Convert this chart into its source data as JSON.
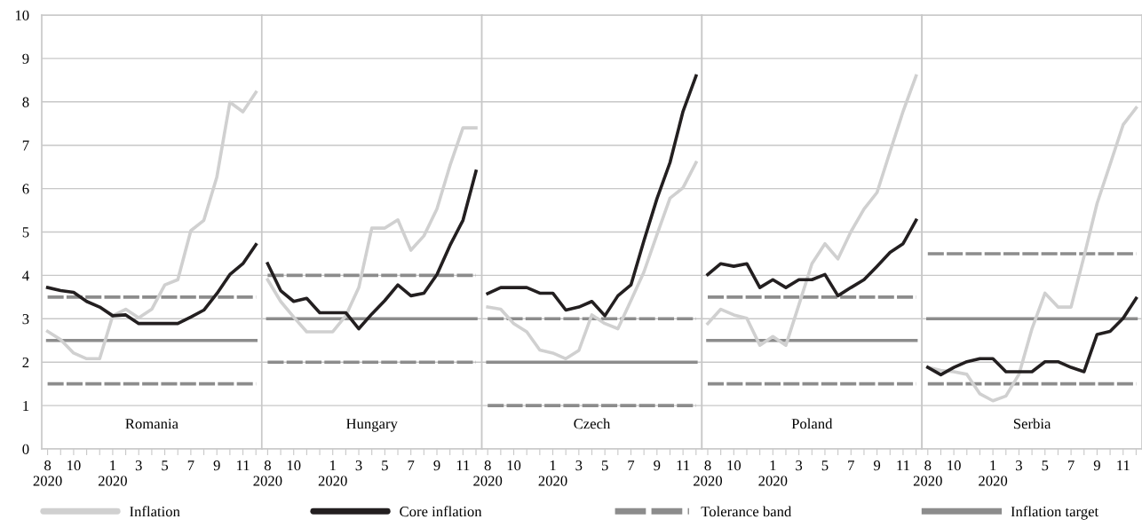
{
  "chart_data": [
    {
      "type": "line",
      "categories": [
        "8\n2020",
        null,
        "10",
        null,
        null,
        "1\n2020",
        null,
        "3",
        null,
        "5",
        null,
        "7",
        null,
        "9",
        null,
        "11",
        null
      ],
      "ylim": [
        0,
        10
      ],
      "yticks": [
        0,
        1,
        2,
        3,
        4,
        5,
        6,
        7,
        8,
        9,
        10
      ],
      "grid": "y",
      "legend": "bottom",
      "series": [
        {
          "name": "Inflation",
          "color": "#d0d0d0",
          "values": [
            2.71,
            2.52,
            2.21,
            2.08,
            2.08,
            3.07,
            3.22,
            3.02,
            3.22,
            3.78,
            3.9,
            5.03,
            5.27,
            6.27,
            7.99,
            7.77,
            8.22
          ]
        },
        {
          "name": "Core inflation",
          "color": "#231f20",
          "values": [
            3.72,
            3.65,
            3.61,
            3.4,
            3.27,
            3.07,
            3.09,
            2.89,
            2.89,
            2.89,
            2.89,
            3.04,
            3.2,
            3.58,
            4.02,
            4.27,
            4.71
          ]
        },
        {
          "name": "Tolerance band",
          "color": "#8c8c8c",
          "line_style": "dashed",
          "values": [
            3.5,
            3.5,
            3.5,
            3.5,
            3.5,
            3.5,
            3.5,
            3.5,
            3.5,
            3.5,
            3.5,
            3.5,
            3.5,
            3.5,
            3.5,
            3.5,
            3.5
          ]
        },
        {
          "color": "#8c8c8c",
          "line_style": "dashed",
          "values": [
            1.5,
            1.5,
            1.5,
            1.5,
            1.5,
            1.5,
            1.5,
            1.5,
            1.5,
            1.5,
            1.5,
            1.5,
            1.5,
            1.5,
            1.5,
            1.5,
            1.5
          ]
        }
      ],
      "ref_lines": [
        {
          "axis": "y",
          "value": 2.5,
          "label": "Inflation target",
          "color": "#8c8c8c",
          "line_style": "solid"
        }
      ],
      "annotations": [
        "Romania"
      ]
    },
    {
      "type": "line",
      "categories": [
        "8\n2020",
        null,
        "10",
        null,
        null,
        "1\n2020",
        null,
        "3",
        null,
        "5",
        null,
        "7",
        null,
        "9",
        null,
        "11",
        null
      ],
      "ylim": [
        0,
        10
      ],
      "yticks": [
        0,
        1,
        2,
        3,
        4,
        5,
        6,
        7,
        8,
        9,
        10
      ],
      "grid": "y",
      "tick_labels": "x",
      "series": [
        {
          "color": "#d0d0d0",
          "values": [
            3.9,
            3.4,
            3.04,
            2.7,
            2.7,
            2.7,
            3.07,
            3.72,
            5.09,
            5.09,
            5.28,
            4.58,
            4.91,
            5.53,
            6.53,
            7.4,
            7.4
          ]
        },
        {
          "color": "#231f20",
          "values": [
            4.27,
            3.65,
            3.4,
            3.47,
            3.14,
            3.14,
            3.14,
            2.77,
            3.11,
            3.42,
            3.78,
            3.53,
            3.59,
            4.02,
            4.69,
            5.27,
            6.4
          ]
        },
        {
          "color": "#8c8c8c",
          "line_style": "dashed",
          "values": [
            4,
            4,
            4,
            4,
            4,
            4,
            4,
            4,
            4,
            4,
            4,
            4,
            4,
            4,
            4,
            4,
            4
          ]
        },
        {
          "color": "#8c8c8c",
          "line_style": "dashed",
          "values": [
            2,
            2,
            2,
            2,
            2,
            2,
            2,
            2,
            2,
            2,
            2,
            2,
            2,
            2,
            2,
            2,
            2
          ]
        }
      ],
      "ref_lines": [
        {
          "axis": "y",
          "value": 3,
          "color": "#8c8c8c",
          "line_style": "solid"
        }
      ],
      "annotations": [
        "Hungary"
      ]
    },
    {
      "type": "line",
      "categories": [
        "8\n2020",
        null,
        "10",
        null,
        null,
        "1\n2020",
        null,
        "3",
        null,
        "5",
        null,
        "7",
        null,
        "9",
        null,
        "11",
        null
      ],
      "ylim": [
        0,
        10
      ],
      "yticks": [
        0,
        1,
        2,
        3,
        4,
        5,
        6,
        7,
        8,
        9,
        10
      ],
      "grid": "y",
      "tick_labels": "x",
      "series": [
        {
          "color": "#d0d0d0",
          "values": [
            3.27,
            3.22,
            2.89,
            2.7,
            2.28,
            2.21,
            2.08,
            2.27,
            3.09,
            2.89,
            2.77,
            3.42,
            4.08,
            4.94,
            5.78,
            6.02,
            6.6
          ]
        },
        {
          "color": "#231f20",
          "values": [
            3.58,
            3.72,
            3.72,
            3.72,
            3.59,
            3.59,
            3.2,
            3.27,
            3.4,
            3.07,
            3.53,
            3.78,
            4.8,
            5.77,
            6.6,
            7.78,
            8.6
          ]
        },
        {
          "color": "#8c8c8c",
          "line_style": "dashed",
          "values": [
            3,
            3,
            3,
            3,
            3,
            3,
            3,
            3,
            3,
            3,
            3,
            3,
            3,
            3,
            3,
            3,
            3
          ]
        },
        {
          "color": "#8c8c8c",
          "line_style": "dashed",
          "values": [
            1,
            1,
            1,
            1,
            1,
            1,
            1,
            1,
            1,
            1,
            1,
            1,
            1,
            1,
            1,
            1,
            1
          ]
        }
      ],
      "ref_lines": [
        {
          "axis": "y",
          "value": 2,
          "color": "#8c8c8c",
          "line_style": "solid"
        }
      ],
      "annotations": [
        "Czech"
      ]
    },
    {
      "type": "line",
      "categories": [
        "8\n2020",
        null,
        "10",
        null,
        null,
        "1\n2020",
        null,
        "3",
        null,
        "5",
        null,
        "7",
        null,
        "9",
        null,
        "11",
        null
      ],
      "ylim": [
        0,
        10
      ],
      "yticks": [
        0,
        1,
        2,
        3,
        4,
        5,
        6,
        7,
        8,
        9,
        10
      ],
      "grid": "y",
      "tick_labels": "x",
      "series": [
        {
          "color": "#d0d0d0",
          "values": [
            2.89,
            3.22,
            3.09,
            3.01,
            2.39,
            2.59,
            2.39,
            3.32,
            4.27,
            4.73,
            4.38,
            5.01,
            5.53,
            5.91,
            6.85,
            7.78,
            8.6
          ]
        },
        {
          "color": "#231f20",
          "values": [
            4.02,
            4.27,
            4.21,
            4.27,
            3.72,
            3.9,
            3.72,
            3.9,
            3.9,
            4.02,
            3.53,
            3.72,
            3.9,
            4.21,
            4.53,
            4.73,
            5.27
          ]
        },
        {
          "color": "#8c8c8c",
          "line_style": "dashed",
          "values": [
            3.5,
            3.5,
            3.5,
            3.5,
            3.5,
            3.5,
            3.5,
            3.5,
            3.5,
            3.5,
            3.5,
            3.5,
            3.5,
            3.5,
            3.5,
            3.5,
            3.5
          ]
        },
        {
          "color": "#8c8c8c",
          "line_style": "dashed",
          "values": [
            1.5,
            1.5,
            1.5,
            1.5,
            1.5,
            1.5,
            1.5,
            1.5,
            1.5,
            1.5,
            1.5,
            1.5,
            1.5,
            1.5,
            1.5,
            1.5,
            1.5
          ]
        }
      ],
      "ref_lines": [
        {
          "axis": "y",
          "value": 2.5,
          "color": "#8c8c8c",
          "line_style": "solid"
        }
      ],
      "annotations": [
        "Poland"
      ]
    },
    {
      "type": "line",
      "categories": [
        "8\n2020",
        null,
        "10",
        null,
        null,
        "1\n2020",
        null,
        "3",
        null,
        "5",
        null,
        "7",
        null,
        "9",
        null,
        "11",
        null
      ],
      "ylim": [
        0,
        10
      ],
      "yticks": [
        0,
        1,
        2,
        3,
        4,
        5,
        6,
        7,
        8,
        9,
        10
      ],
      "grid": "y",
      "tick_labels": "x",
      "series": [
        {
          "color": "#d0d0d0",
          "values": [
            1.88,
            1.81,
            1.78,
            1.72,
            1.27,
            1.11,
            1.22,
            1.72,
            2.77,
            3.59,
            3.27,
            3.27,
            4.44,
            5.66,
            6.56,
            7.47,
            7.86
          ]
        },
        {
          "color": "#231f20",
          "values": [
            1.88,
            1.71,
            1.88,
            2.01,
            2.08,
            2.08,
            1.78,
            1.78,
            1.78,
            2.01,
            2.01,
            1.88,
            1.78,
            2.64,
            2.71,
            3.01,
            3.47
          ]
        },
        {
          "color": "#8c8c8c",
          "line_style": "dashed",
          "values": [
            4.5,
            4.5,
            4.5,
            4.5,
            4.5,
            4.5,
            4.5,
            4.5,
            4.5,
            4.5,
            4.5,
            4.5,
            4.5,
            4.5,
            4.5,
            4.5,
            4.5
          ]
        },
        {
          "color": "#8c8c8c",
          "line_style": "dashed",
          "values": [
            1.5,
            1.5,
            1.5,
            1.5,
            1.5,
            1.5,
            1.5,
            1.5,
            1.5,
            1.5,
            1.5,
            1.5,
            1.5,
            1.5,
            1.5,
            1.5,
            1.5
          ]
        }
      ],
      "ref_lines": [
        {
          "axis": "y",
          "value": 3,
          "color": "#8c8c8c",
          "line_style": "solid"
        }
      ],
      "annotations": [
        "Serbia"
      ]
    }
  ]
}
